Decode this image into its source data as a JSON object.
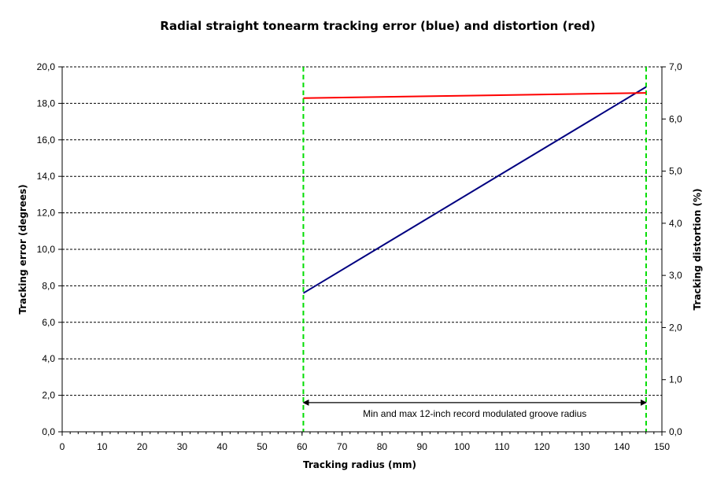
{
  "chart_data": {
    "type": "line",
    "title": "Radial straight tonearm tracking error (blue) and distortion (red)",
    "xlabel": "Tracking radius (mm)",
    "ylabel": "Tracking error (degrees)",
    "y2label": "Tracking distortion (%)",
    "xlim": [
      0,
      150
    ],
    "ylim": [
      0,
      20
    ],
    "y2lim": [
      0,
      7
    ],
    "x_ticks": [
      "0",
      "10",
      "20",
      "30",
      "40",
      "50",
      "60",
      "70",
      "80",
      "90",
      "100",
      "110",
      "120",
      "130",
      "140",
      "150"
    ],
    "y_ticks": [
      "0,0",
      "2,0",
      "4,0",
      "6,0",
      "8,0",
      "10,0",
      "12,0",
      "14,0",
      "16,0",
      "18,0",
      "20,0"
    ],
    "y2_ticks": [
      "0,0",
      "1,0",
      "2,0",
      "3,0",
      "4,0",
      "5,0",
      "6,0",
      "7,0"
    ],
    "grid": true,
    "series": [
      {
        "color": "#000080",
        "axis": "left",
        "x": [
          60.325,
          146.05
        ],
        "values": [
          7.6,
          18.9
        ]
      },
      {
        "color": "#ff0000",
        "axis": "right",
        "x": [
          60.325,
          146.05
        ],
        "values": [
          6.4,
          6.5
        ]
      }
    ],
    "markers": [
      {
        "x": 60.325,
        "color": "#00dd00"
      },
      {
        "x": 146.05,
        "color": "#00dd00"
      }
    ],
    "annotation": {
      "text": "Min and max 12-inch record modulated groove radius",
      "x_from": 60.325,
      "x_to": 146.05,
      "y": 1.6
    }
  }
}
